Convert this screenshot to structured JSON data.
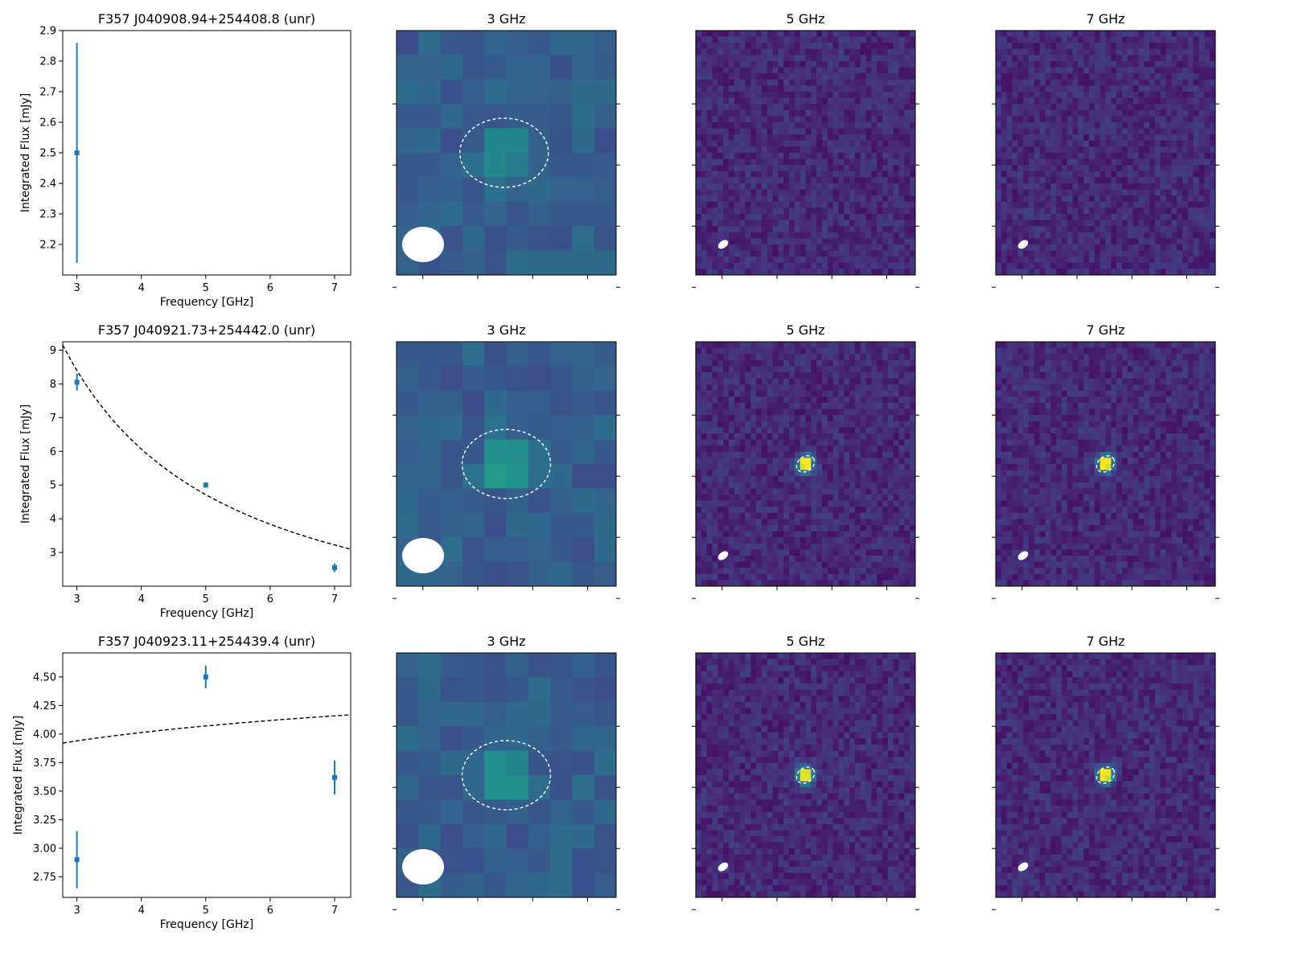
{
  "figure": {
    "rows": [
      {
        "source_title": "F357 J040908.94+254408.8 (unr)",
        "image_titles": [
          "3 GHz",
          "5 GHz",
          "7 GHz"
        ]
      },
      {
        "source_title": "F357 J040921.73+254442.0 (unr)",
        "image_titles": [
          "3 GHz",
          "5 GHz",
          "7 GHz"
        ]
      },
      {
        "source_title": "F357 J040923.11+254439.4 (unr)",
        "image_titles": [
          "3 GHz",
          "5 GHz",
          "7 GHz"
        ]
      }
    ]
  },
  "chart_data": [
    {
      "type": "scatter",
      "title": "F357 J040908.94+254408.8 (unr)",
      "xlabel": "Frequency [GHz]",
      "ylabel": "Integrated Flux [mJy]",
      "xlim": [
        2.78,
        7.25
      ],
      "ylim": [
        2.1,
        2.9
      ],
      "xticks": [
        3,
        4,
        5,
        6,
        7
      ],
      "yticks": [
        2.2,
        2.3,
        2.4,
        2.5,
        2.6,
        2.7,
        2.8,
        2.9
      ],
      "ytick_labels": [
        "2.2",
        "2.3",
        "2.4",
        "2.5",
        "2.6",
        "2.7",
        "2.8",
        "2.9"
      ],
      "points": [
        {
          "x": 3,
          "y": 2.5,
          "err": 0.36
        }
      ],
      "fit": null,
      "color": "#1f77b4"
    },
    {
      "type": "scatter",
      "title": "F357 J040921.73+254442.0 (unr)",
      "xlabel": "Frequency [GHz]",
      "ylabel": "Integrated Flux [mJy]",
      "xlim": [
        2.78,
        7.25
      ],
      "ylim": [
        2.0,
        9.25
      ],
      "xticks": [
        3,
        4,
        5,
        6,
        7
      ],
      "yticks": [
        3,
        4,
        5,
        6,
        7,
        8,
        9
      ],
      "ytick_labels": [
        "3",
        "4",
        "5",
        "6",
        "7",
        "8",
        "9"
      ],
      "points": [
        {
          "x": 3,
          "y": 8.05,
          "err": 0.25
        },
        {
          "x": 5,
          "y": 5.0,
          "err": 0.08
        },
        {
          "x": 7,
          "y": 2.55,
          "err": 0.13
        }
      ],
      "fit": {
        "style": "dashed",
        "amplitude": 8.4,
        "alpha": -1.13,
        "ref": 3
      },
      "color": "#1f77b4"
    },
    {
      "type": "scatter",
      "title": "F357 J040923.11+254439.4 (unr)",
      "xlabel": "Frequency [GHz]",
      "ylabel": "Integrated Flux [mJy]",
      "xlim": [
        2.78,
        7.25
      ],
      "ylim": [
        2.57,
        4.71
      ],
      "xticks": [
        3,
        4,
        5,
        6,
        7
      ],
      "yticks": [
        2.75,
        3.0,
        3.25,
        3.5,
        3.75,
        4.0,
        4.25,
        4.5
      ],
      "ytick_labels": [
        "2.75",
        "3.00",
        "3.25",
        "3.50",
        "3.75",
        "4.00",
        "4.25",
        "4.50"
      ],
      "points": [
        {
          "x": 3,
          "y": 2.9,
          "err": 0.25
        },
        {
          "x": 5,
          "y": 4.5,
          "err": 0.1
        },
        {
          "x": 7,
          "y": 3.62,
          "err": 0.15
        }
      ],
      "fit": {
        "style": "dashed",
        "amplitude": 3.94,
        "alpha": 0.064,
        "ref": 3
      },
      "color": "#1f77b4"
    }
  ],
  "colormap": {
    "name": "viridis",
    "background_3ghz": "#3b528b",
    "background_hi": "#3a2d78",
    "source_bright": "#21918c",
    "peak": "#fde725",
    "aperture": "#ffffff",
    "beam": "#ffffff"
  }
}
